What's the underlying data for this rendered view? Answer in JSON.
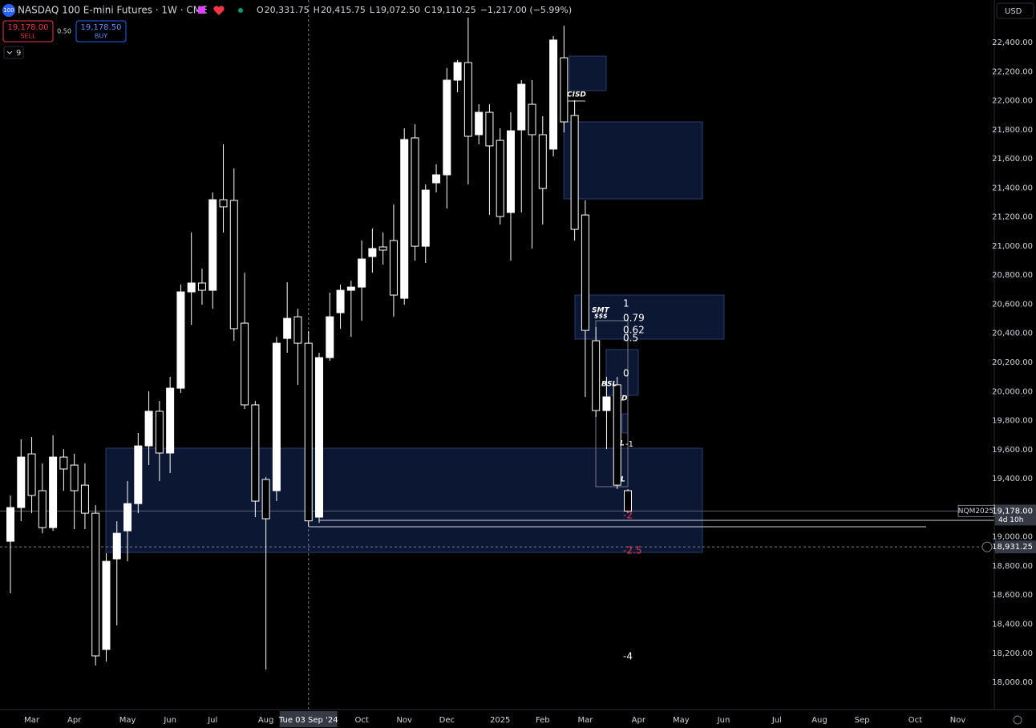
{
  "header": {
    "title": "NASDAQ 100 E-mini Futures · 1W · CME",
    "badge": "100",
    "readout": [
      {
        "label": "O",
        "value": "20,331.75"
      },
      {
        "label": "H",
        "value": "20,415.75"
      },
      {
        "label": "L",
        "value": "19,072.50"
      },
      {
        "label": "C",
        "value": "19,110.25"
      }
    ],
    "change": "−1,217.00 (−5.99%)"
  },
  "trade": {
    "sell_price": "19,178.00",
    "sell": "SELL",
    "spread": "0.50",
    "buy_price": "19,178.50",
    "buy": "BUY",
    "indicators": "9"
  },
  "currency": "USD",
  "annotations": [
    "CISD",
    "SMT",
    "$$$",
    "BSL",
    "D",
    "L",
    "L",
    "1",
    "0.79",
    "0.62",
    "0.5",
    "0",
    "-1",
    "-2",
    "-2.5",
    "-4"
  ],
  "chart_data": {
    "type": "candlestick",
    "categories": [
      null,
      null,
      "Mar",
      null,
      null,
      null,
      "Apr",
      null,
      null,
      null,
      null,
      "May",
      null,
      null,
      null,
      "Jun",
      null,
      null,
      null,
      "Jul",
      null,
      null,
      null,
      null,
      "Aug",
      null,
      null,
      null,
      "Tue 03 Sep '24",
      null,
      null,
      null,
      null,
      "Oct",
      null,
      null,
      null,
      "Nov",
      null,
      null,
      null,
      "Dec",
      null,
      null,
      null,
      null,
      "2025",
      null,
      null,
      null,
      "Feb",
      null,
      null,
      null,
      "Mar",
      null,
      null,
      null,
      null,
      "Apr",
      null,
      null,
      null,
      "May",
      null,
      null,
      null,
      "Jun",
      null,
      null,
      null,
      null,
      "Jul",
      null,
      null,
      null,
      "Aug",
      null,
      null,
      null,
      "Sep",
      null,
      null,
      null,
      null,
      "Oct",
      null,
      null,
      null,
      "Nov",
      null,
      null
    ],
    "open": [
      18970,
      19202,
      19571,
      19318,
      19064,
      19549,
      19494,
      19356,
      19163,
      18226,
      18849,
      19042,
      19229,
      19626,
      19864,
      19577,
      20023,
      20685,
      20746,
      20696,
      21319,
      21314,
      20470,
      19908,
      19395,
      19318,
      20365,
      20514,
      20331.75,
      19136,
      20233,
      20542,
      20696,
      20718,
      20928,
      20994,
      21038,
      20641,
      21744,
      20999,
      21435,
      21490,
      22141,
      22262,
      21766,
      21920,
      21727,
      21231,
      21799,
      21975,
      21766,
      21667,
      22295,
      21898,
      21214,
      20349,
      19869,
      20046,
      19318,
      null,
      null,
      null,
      null,
      null,
      null,
      null,
      null,
      null,
      null,
      null,
      null,
      null,
      null,
      null,
      null,
      null,
      null,
      null,
      null,
      null,
      null,
      null,
      null,
      null,
      null,
      null,
      null,
      null,
      null,
      null,
      null,
      null
    ],
    "high": [
      19285,
      19671,
      19687,
      19505,
      19698,
      19604,
      19571,
      19505,
      19218,
      18888,
      19108,
      19384,
      19715,
      20001,
      19935,
      20101,
      20735,
      21093,
      20845,
      21369,
      21700,
      21534,
      20817,
      19935,
      19411,
      20376,
      20751,
      20569,
      20415.75,
      20266,
      20680,
      20735,
      20762,
      21038,
      21121,
      21093,
      21286,
      21810,
      21838,
      21424,
      21562,
      22224,
      22279,
      22571,
      21975,
      21975,
      21810,
      21920,
      22141,
      22141,
      21893,
      22444,
      22516,
      22003,
      21314,
      20443,
      20101,
      20101,
      19329,
      null,
      null,
      null,
      null,
      null,
      null,
      null,
      null,
      null,
      null,
      null,
      null,
      null,
      null,
      null,
      null,
      null,
      null,
      null,
      null,
      null,
      null,
      null,
      null,
      null,
      null,
      null,
      null,
      null,
      null,
      null,
      null,
      null
    ],
    "low": [
      18612,
      19108,
      19163,
      19025,
      19042,
      19318,
      19053,
      19053,
      18116,
      18143,
      18391,
      18832,
      19163,
      19494,
      19384,
      19439,
      19990,
      20459,
      20597,
      20569,
      21093,
      20349,
      19880,
      19136,
      18088,
      19246,
      20266,
      20046,
      19072.5,
      19097,
      20211,
      20432,
      20376,
      20487,
      20817,
      20873,
      20514,
      20597,
      20900,
      20884,
      21369,
      21259,
      22058,
      21424,
      21700,
      21214,
      21148,
      20900,
      21231,
      20983,
      21148,
      21617,
      21782,
      21038,
      19963,
      19825,
      19604,
      19329,
      19163,
      null,
      null,
      null,
      null,
      null,
      null,
      null,
      null,
      null,
      null,
      null,
      null,
      null,
      null,
      null,
      null,
      null,
      null,
      null,
      null,
      null,
      null,
      null,
      null,
      null,
      null,
      null,
      null,
      null,
      null,
      null,
      null,
      null
    ],
    "close": [
      19202,
      19549,
      19285,
      19064,
      19549,
      19467,
      19318,
      19163,
      18182,
      18832,
      19025,
      19229,
      19626,
      19864,
      19577,
      20023,
      20685,
      20746,
      20696,
      21319,
      21270,
      20432,
      19908,
      19246,
      19125,
      20332,
      20503,
      20332,
      19110.25,
      20233,
      20514,
      20696,
      20718,
      20911,
      20983,
      20972,
      20663,
      21733,
      20999,
      21385,
      21490,
      22141,
      22262,
      21755,
      21920,
      21689,
      21203,
      21793,
      22113,
      21766,
      21396,
      22417,
      21854,
      21115,
      20420,
      19869,
      19963,
      19356,
      19178,
      null,
      null,
      null,
      null,
      null,
      null,
      null,
      null,
      null,
      null,
      null,
      null,
      null,
      null,
      null,
      null,
      null,
      null,
      null,
      null,
      null,
      null,
      null,
      null,
      null,
      null,
      null,
      null,
      null,
      null,
      null,
      null,
      null
    ],
    "up_color": "#ffffff",
    "down_color": "#000000",
    "ylim": [
      17800,
      22700
    ],
    "yticks": [
      {
        "value": 18000,
        "label": "18,000.00"
      },
      {
        "value": 18200,
        "label": "18,200.00"
      },
      {
        "value": 18400,
        "label": "18,400.00"
      },
      {
        "value": 18600,
        "label": "18,600.00"
      },
      {
        "value": 18800,
        "label": "18,800.00"
      },
      {
        "value": 19000,
        "label": "19,000.00"
      },
      {
        "value": 19200,
        "label": "19,200.00"
      },
      {
        "value": 19400,
        "label": "19,400.00"
      },
      {
        "value": 19600,
        "label": "19,600.00"
      },
      {
        "value": 19800,
        "label": "19,800.00"
      },
      {
        "value": 20000,
        "label": "20,000.00"
      },
      {
        "value": 20200,
        "label": "20,200.00"
      },
      {
        "value": 20400,
        "label": "20,400.00"
      },
      {
        "value": 20600,
        "label": "20,600.00"
      },
      {
        "value": 20800,
        "label": "20,800.00"
      },
      {
        "value": 21000,
        "label": "21,000.00"
      },
      {
        "value": 21200,
        "label": "21,200.00"
      },
      {
        "value": 21400,
        "label": "21,400.00"
      },
      {
        "value": 21600,
        "label": "21,600.00"
      },
      {
        "value": 21800,
        "label": "21,800.00"
      },
      {
        "value": 22000,
        "label": "22,000.00"
      },
      {
        "value": 22200,
        "label": "22,200.00"
      },
      {
        "value": 22400,
        "label": "22,400.00"
      }
    ],
    "last_price": {
      "value": 19178,
      "label": "19,178.00"
    },
    "symbol_tag": "NQM2025",
    "countdown": "4d 10h",
    "crosshair_price": {
      "value": 18931.25,
      "label": "18,931.25"
    }
  }
}
